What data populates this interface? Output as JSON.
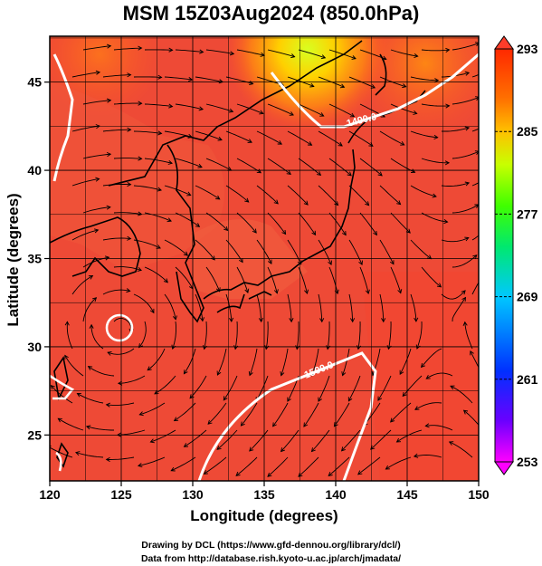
{
  "title": "MSM 15Z03Aug2024 (850.0hPa)",
  "x_axis": {
    "label": "Longitude (degrees)",
    "range": [
      120,
      150
    ],
    "ticks": [
      "120",
      "125",
      "130",
      "135",
      "140",
      "145",
      "150"
    ]
  },
  "y_axis": {
    "label": "Latitude  (degrees)",
    "range": [
      22.4,
      47.6
    ],
    "ticks": [
      "25",
      "30",
      "35",
      "40",
      "45"
    ]
  },
  "colorbar": {
    "range": [
      253,
      293
    ],
    "ticks": [
      "293",
      "285",
      "277",
      "269",
      "261",
      "253"
    ],
    "colors": [
      "#ff00ff",
      "#4000ff",
      "#0050ff",
      "#00c8ff",
      "#00ff80",
      "#40ff00",
      "#c8ff00",
      "#ffd000",
      "#ff8000",
      "#ff3000",
      "#e84030"
    ]
  },
  "contours": [
    {
      "label": "1490.0",
      "level": 1490.0
    },
    {
      "label": "1500.0",
      "level": 1500.0
    }
  ],
  "credits": [
    "Drawing by DCL (https://www.gfd-dennou.org/library/dcl/)",
    "Data from http://database.rish.kyoto-u.ac.jp/arch/jmadata/"
  ]
}
